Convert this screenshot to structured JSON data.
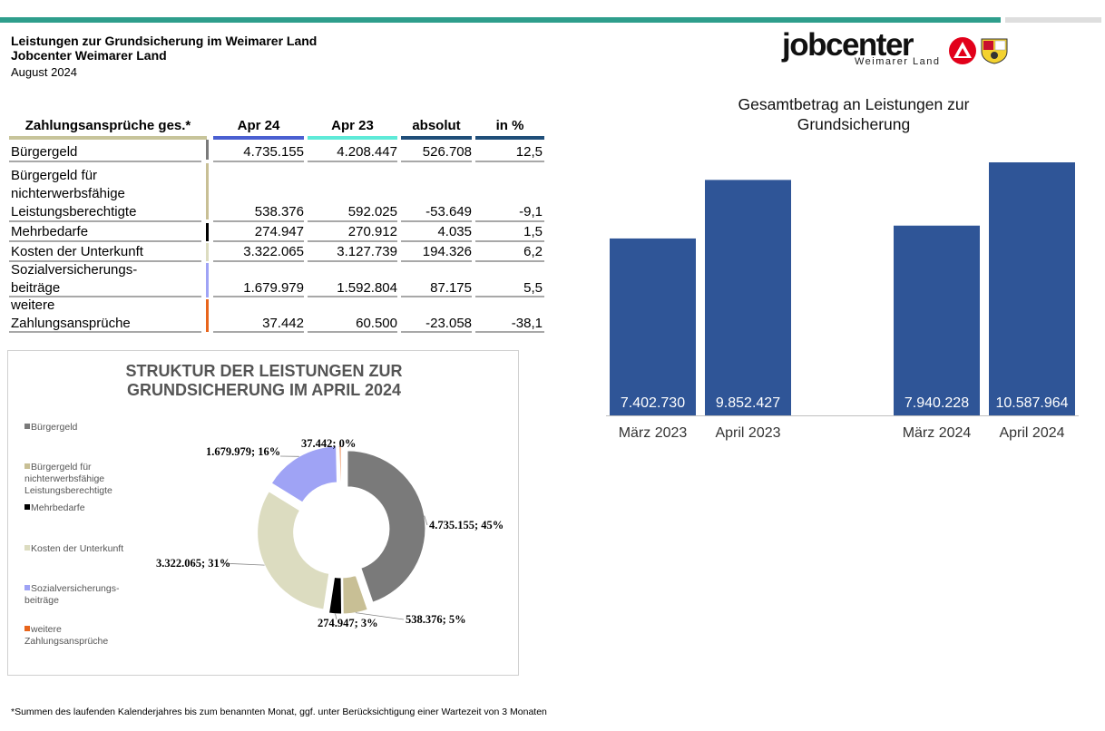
{
  "header": {
    "title": "Leistungen zur Grundsicherung im Weimarer Land",
    "subtitle": "Jobcenter Weimarer Land",
    "date": "August 2024"
  },
  "logo": {
    "word": "jobcenter",
    "sub": "Weimarer Land"
  },
  "table": {
    "columns": [
      "Zahlungsansprüche ges.*",
      "Apr 24",
      "Apr 23",
      "absolut",
      "in %"
    ],
    "column_colors": [
      "#c7c49a",
      "#4a5fd1",
      "#5eead8",
      "#1f4e79",
      "#1f4e79"
    ],
    "rows": [
      {
        "label": [
          "Bürgergeld"
        ],
        "apr24": "4.735.155",
        "apr23": "4.208.447",
        "absolut": "526.708",
        "pct": "12,5",
        "color": "#7a7a7a"
      },
      {
        "label": [
          "Bürgergeld für",
          "nichterwerbsfähige",
          "Leistungsberechtigte"
        ],
        "apr24": "538.376",
        "apr23": "592.025",
        "absolut": "-53.649",
        "pct": "-9,1",
        "color": "#c8bf95"
      },
      {
        "label": [
          "Mehrbedarfe"
        ],
        "apr24": "274.947",
        "apr23": "270.912",
        "absolut": "4.035",
        "pct": "1,5",
        "color": "#000000"
      },
      {
        "label": [
          "Kosten der Unterkunft"
        ],
        "apr24": "3.322.065",
        "apr23": "3.127.739",
        "absolut": "194.326",
        "pct": "6,2",
        "color": "#dcdcc0"
      },
      {
        "label": [
          "Sozialversicherungs-",
          "beiträge"
        ],
        "apr24": "1.679.979",
        "apr23": "1.592.804",
        "absolut": "87.175",
        "pct": "5,5",
        "color": "#9fa3f5"
      },
      {
        "label": [
          "weitere",
          "Zahlungsansprüche"
        ],
        "apr24": "37.442",
        "apr23": "60.500",
        "absolut": "-23.058",
        "pct": "-38,1",
        "color": "#e8651c"
      }
    ]
  },
  "footnote": "*Summen des laufenden Kalenderjahres bis zum benannten Monat, ggf. unter Berücksichtigung einer Wartezeit von 3 Monaten",
  "chart_data": [
    {
      "type": "pie",
      "style": "donut",
      "title": [
        "STRUKTUR DER LEISTUNGEN ZUR",
        "GRUNDSICHERUNG IM APRIL 2024"
      ],
      "legend_position": "left",
      "slices": [
        {
          "name": [
            "Bürgergeld"
          ],
          "value": 4735155,
          "label": "4.735.155; 45%",
          "color": "#7a7a7a"
        },
        {
          "name": [
            "Bürgergeld für",
            "nichterwerbsfähige",
            "Leistungsberechtigte"
          ],
          "value": 538376,
          "label": "538.376; 5%",
          "color": "#c8bf95"
        },
        {
          "name": [
            "Mehrbedarfe"
          ],
          "value": 274947,
          "label": "274.947; 3%",
          "color": "#000000"
        },
        {
          "name": [
            "Kosten der Unterkunft"
          ],
          "value": 3322065,
          "label": "3.322.065; 31%",
          "color": "#dcdcc0"
        },
        {
          "name": [
            "Sozialversicherungs-",
            "beiträge"
          ],
          "value": 1679979,
          "label": "1.679.979; 16%",
          "color": "#9fa3f5"
        },
        {
          "name": [
            "weitere",
            "Zahlungsansprüche"
          ],
          "value": 37442,
          "label": "37.442; 0%",
          "color": "#e8651c"
        }
      ]
    },
    {
      "type": "bar",
      "title": [
        "Gesamtbetrag an Leistungen zur",
        "Grundsicherung"
      ],
      "categories": [
        "März 2023",
        "April 2023",
        "März 2024",
        "April 2024"
      ],
      "values": [
        7402730,
        9852427,
        7940228,
        10587964
      ],
      "value_labels": [
        "7.402.730",
        "9.852.427",
        "7.940.228",
        "10.587.964"
      ],
      "ylim": [
        0,
        10587964
      ],
      "grid": false,
      "bar_color": "#2f5597"
    }
  ]
}
